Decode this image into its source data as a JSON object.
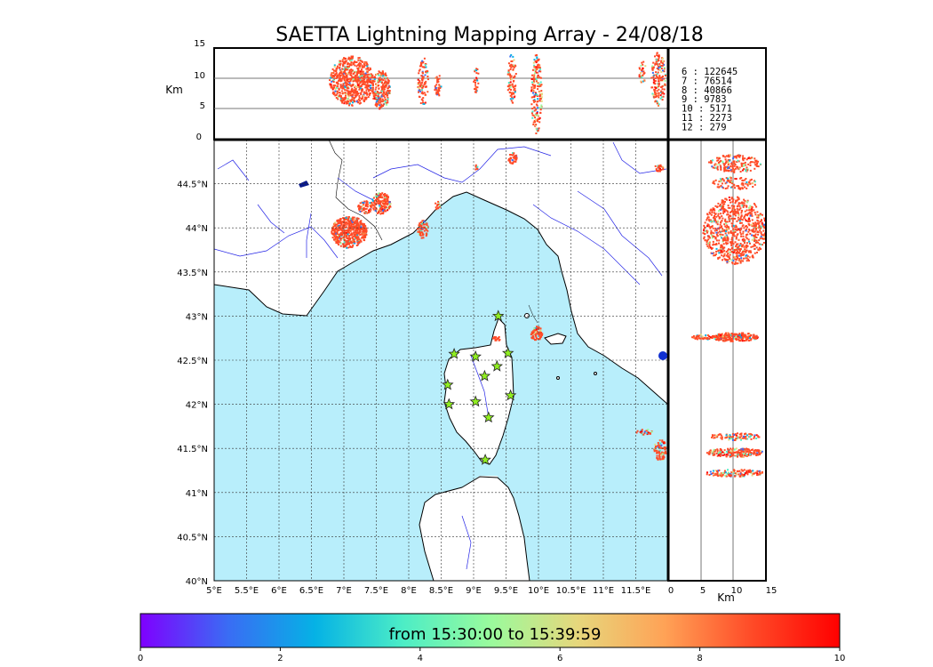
{
  "figure": {
    "title": "SAETTA Lightning Mapping Array - 24/08/18",
    "altitude_unit_label": "Km",
    "side_xaxis_unit_label": "Km",
    "time_range_label": "from 15:30:00 to 15:39:59"
  },
  "map": {
    "lon_range": [
      5,
      12
    ],
    "lat_range": [
      40,
      45
    ],
    "lon_ticks": [
      "5°E",
      "5.5°E",
      "6°E",
      "6.5°E",
      "7°E",
      "7.5°E",
      "8°E",
      "8.5°E",
      "9°E",
      "9.5°E",
      "10°E",
      "10.5°E",
      "11°E",
      "11.5°E"
    ],
    "lat_ticks": [
      "40°N",
      "40.5°N",
      "41°N",
      "41.5°N",
      "42°N",
      "42.5°N",
      "43°N",
      "43.5°N",
      "44°N",
      "44.5°N"
    ],
    "sea_color": "#b8eefb",
    "land_color": "#ffffff",
    "river_color": "#2424e6",
    "station_color": "#90ee20",
    "stations": [
      {
        "lon": 8.7,
        "lat": 42.57
      },
      {
        "lon": 9.03,
        "lat": 42.54
      },
      {
        "lon": 9.38,
        "lat": 43.0
      },
      {
        "lon": 9.53,
        "lat": 42.58
      },
      {
        "lon": 9.36,
        "lat": 42.43
      },
      {
        "lon": 9.17,
        "lat": 42.32
      },
      {
        "lon": 8.6,
        "lat": 42.22
      },
      {
        "lon": 9.57,
        "lat": 42.1
      },
      {
        "lon": 8.62,
        "lat": 42.0
      },
      {
        "lon": 9.03,
        "lat": 42.03
      },
      {
        "lon": 9.23,
        "lat": 41.85
      },
      {
        "lon": 9.18,
        "lat": 41.37
      }
    ]
  },
  "altitude_axis": {
    "ticks": [
      "0",
      "5",
      "10",
      "15"
    ],
    "range_km": [
      0,
      15
    ]
  },
  "source_counts": [
    {
      "label": "6  :   122645",
      "color": "#000000"
    },
    {
      "label": "7  :    76514",
      "color": "#dd0000"
    },
    {
      "label": "8  :    40866",
      "color": "#000000"
    },
    {
      "label": "9  :     9783",
      "color": "#000000"
    },
    {
      "label": "10 :     5171",
      "color": "#000000"
    },
    {
      "label": "11 :     2273",
      "color": "#000000"
    },
    {
      "label": "12 :      279",
      "color": "#000000"
    }
  ],
  "colorbar": {
    "ticks": [
      "0",
      "2",
      "4",
      "6",
      "8",
      "10"
    ],
    "range": [
      0,
      10
    ],
    "colors": [
      "#7f00ff",
      "#3a6cf4",
      "#05b2e5",
      "#4cedc6",
      "#99fb9d",
      "#e6d77c",
      "#ffa256",
      "#ff4a27",
      "#ff0000"
    ]
  }
}
